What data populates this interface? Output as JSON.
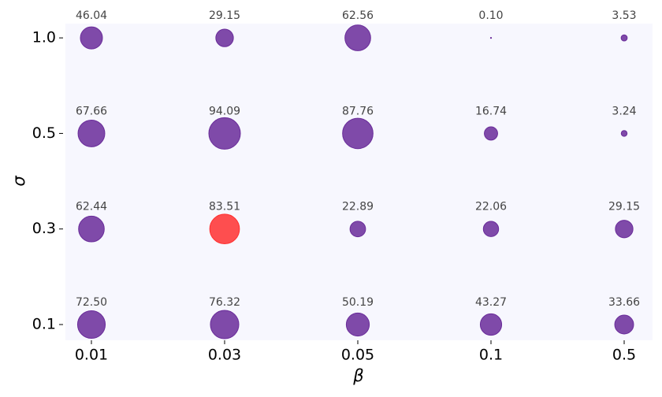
{
  "chart_data": {
    "type": "bubble-grid",
    "x_label": "β",
    "y_label": "σ",
    "x_categories": [
      "0.01",
      "0.03",
      "0.05",
      "0.1",
      "0.5"
    ],
    "y_categories": [
      "0.1",
      "0.3",
      "0.5",
      "1.0"
    ],
    "values": [
      [
        72.5,
        76.32,
        50.19,
        43.27,
        33.66
      ],
      [
        62.44,
        83.51,
        22.89,
        22.06,
        29.15
      ],
      [
        67.66,
        94.09,
        87.76,
        16.74,
        3.24
      ],
      [
        46.04,
        29.15,
        62.56,
        0.1,
        3.53
      ]
    ],
    "value_labels": [
      [
        "72.50",
        "76.32",
        "50.19",
        "43.27",
        "33.66"
      ],
      [
        "62.44",
        "83.51",
        "22.89",
        "22.06",
        "29.15"
      ],
      [
        "67.66",
        "94.09",
        "87.76",
        "16.74",
        "3.24"
      ],
      [
        "46.04",
        "29.15",
        "62.56",
        "0.10",
        "3.53"
      ]
    ],
    "colors": [
      [
        "#6a2c9a",
        "#6a2c9a",
        "#6a2c9a",
        "#6a2c9a",
        "#6a2c9a"
      ],
      [
        "#6a2c9a",
        "#ff3030",
        "#6a2c9a",
        "#6a2c9a",
        "#6a2c9a"
      ],
      [
        "#6a2c9a",
        "#6a2c9a",
        "#6a2c9a",
        "#6a2c9a",
        "#6a2c9a"
      ],
      [
        "#6a2c9a",
        "#6a2c9a",
        "#6a2c9a",
        "#6a2c9a",
        "#6a2c9a"
      ]
    ]
  }
}
